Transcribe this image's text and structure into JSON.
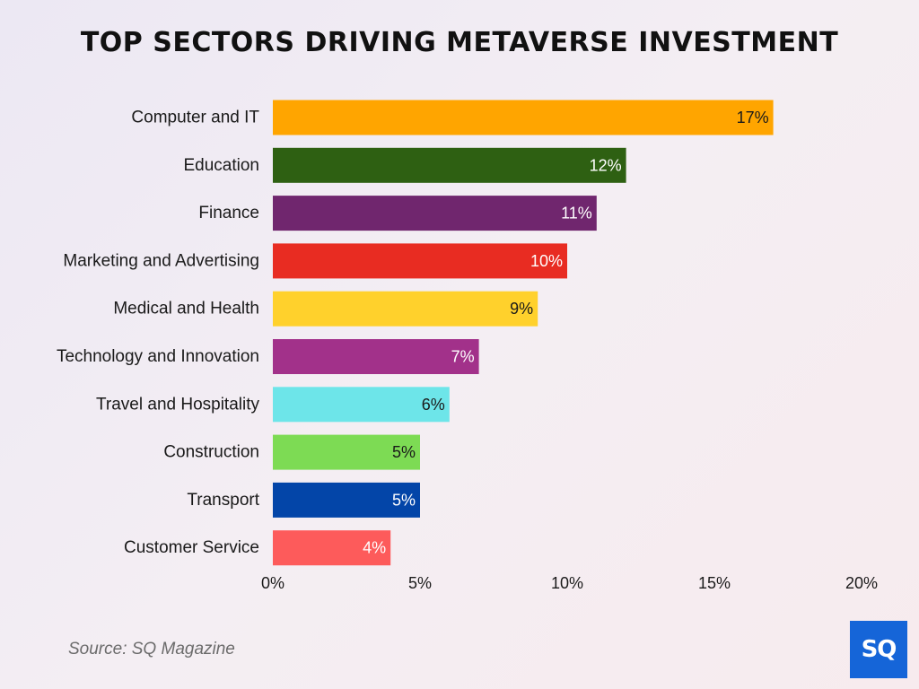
{
  "title": "TOP SECTORS DRIVING METAVERSE INVESTMENT",
  "source": "Source: SQ Magazine",
  "logo_text": "SQ",
  "chart_data": {
    "type": "bar",
    "orientation": "horizontal",
    "title": "TOP SECTORS DRIVING METAVERSE INVESTMENT",
    "xlabel": "",
    "ylabel": "",
    "xlim": [
      0,
      20
    ],
    "ticks": [
      0,
      5,
      10,
      15,
      20
    ],
    "tick_labels": [
      "0%",
      "5%",
      "10%",
      "15%",
      "20%"
    ],
    "grid": false,
    "categories": [
      "Computer and IT",
      "Education",
      "Finance",
      "Marketing and Advertising",
      "Medical and Health",
      "Technology and Innovation",
      "Travel and Hospitality",
      "Construction",
      "Transport",
      "Customer Service"
    ],
    "values": [
      17,
      12,
      11,
      10,
      9,
      7,
      6,
      5,
      5,
      4
    ],
    "value_labels": [
      "17%",
      "12%",
      "11%",
      "10%",
      "9%",
      "7%",
      "6%",
      "5%",
      "5%",
      "4%"
    ],
    "colors": [
      "#ffa500",
      "#2e6012",
      "#70266e",
      "#e82c22",
      "#ffd12c",
      "#a2318a",
      "#6de5e9",
      "#7ddb54",
      "#0345a8",
      "#fd5b5b"
    ],
    "label_colors": [
      "#1a1a1a",
      "#ffffff",
      "#ffffff",
      "#ffffff",
      "#1a1a1a",
      "#ffffff",
      "#1a1a1a",
      "#1a1a1a",
      "#ffffff",
      "#ffffff"
    ]
  }
}
